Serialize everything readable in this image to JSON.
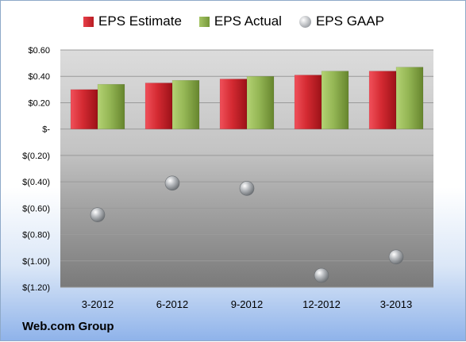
{
  "chart_data": {
    "type": "bar",
    "categories": [
      "3-2012",
      "6-2012",
      "9-2012",
      "12-2012",
      "3-2013"
    ],
    "series": [
      {
        "name": "EPS Estimate",
        "kind": "bar",
        "color": "#c8202a",
        "values": [
          0.3,
          0.35,
          0.38,
          0.41,
          0.44
        ]
      },
      {
        "name": "EPS Actual",
        "kind": "bar",
        "color": "#8cb04c",
        "values": [
          0.34,
          0.37,
          0.4,
          0.44,
          0.47
        ]
      },
      {
        "name": "EPS GAAP",
        "kind": "scatter",
        "color": "#a0a4a8",
        "values": [
          -0.65,
          -0.41,
          -0.45,
          -1.11,
          -0.97
        ]
      }
    ],
    "ylim": [
      -1.2,
      0.6
    ],
    "yticks": [
      0.6,
      0.4,
      0.2,
      0,
      -0.2,
      -0.4,
      -0.6,
      -0.8,
      -1.0,
      -1.2
    ],
    "ytick_labels": [
      "$0.60",
      "$0.40",
      "$0.20",
      "$-",
      "$(0.20)",
      "$(0.40)",
      "$(0.60)",
      "$(0.80)",
      "$(1.00)",
      "$(1.20)"
    ],
    "grid": true,
    "legend_position": "top"
  },
  "footer": {
    "source": "Web.com Group"
  }
}
